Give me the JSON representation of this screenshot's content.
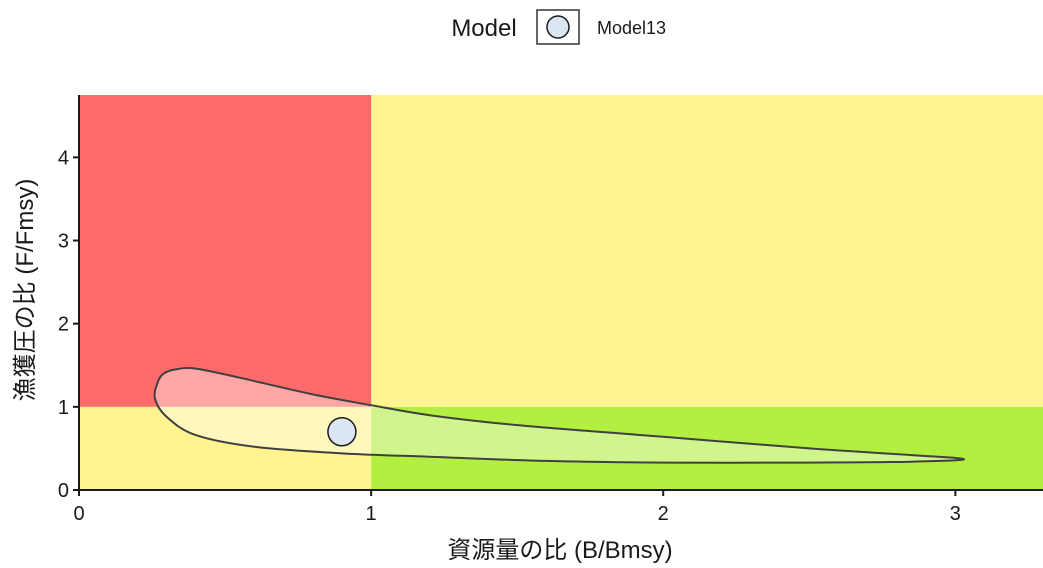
{
  "chart_data": {
    "type": "scatter",
    "title": "",
    "xlabel": "資源量の比 (B/Bmsy)",
    "ylabel": "漁獲圧の比 (F/Fmsy)",
    "xlim": [
      0,
      3.3
    ],
    "ylim": [
      0,
      4.75
    ],
    "x_ticks": [
      "0",
      "1",
      "2",
      "3"
    ],
    "y_ticks": [
      "0",
      "1",
      "2",
      "3",
      "4"
    ],
    "grid": false,
    "legend": {
      "position": "top-center",
      "title": "Model",
      "entries": [
        "Model13"
      ]
    },
    "reference_lines": {
      "bmsy_ratio": 1,
      "fmsy_ratio": 1
    },
    "zone_colors": {
      "overfished_overfishing": "#ff6b6b",
      "caution": "#fff48f",
      "healthy": "#b2ef41"
    },
    "series": [
      {
        "name": "Model13",
        "point": {
          "x": 0.9,
          "y": 0.7
        },
        "marker_fill": "#dce6f2",
        "marker_stroke": "#1a1a1a",
        "confidence_region": [
          [
            0.27,
            1.3
          ],
          [
            0.29,
            1.4
          ],
          [
            0.33,
            1.45
          ],
          [
            0.4,
            1.46
          ],
          [
            0.55,
            1.35
          ],
          [
            0.8,
            1.15
          ],
          [
            1.0,
            1.02
          ],
          [
            1.2,
            0.9
          ],
          [
            1.5,
            0.78
          ],
          [
            2.0,
            0.64
          ],
          [
            2.5,
            0.5
          ],
          [
            2.85,
            0.42
          ],
          [
            3.03,
            0.37
          ],
          [
            2.85,
            0.34
          ],
          [
            2.5,
            0.33
          ],
          [
            2.0,
            0.33
          ],
          [
            1.6,
            0.35
          ],
          [
            1.2,
            0.4
          ],
          [
            0.9,
            0.44
          ],
          [
            0.6,
            0.52
          ],
          [
            0.4,
            0.66
          ],
          [
            0.3,
            0.88
          ],
          [
            0.26,
            1.1
          ]
        ]
      }
    ]
  }
}
